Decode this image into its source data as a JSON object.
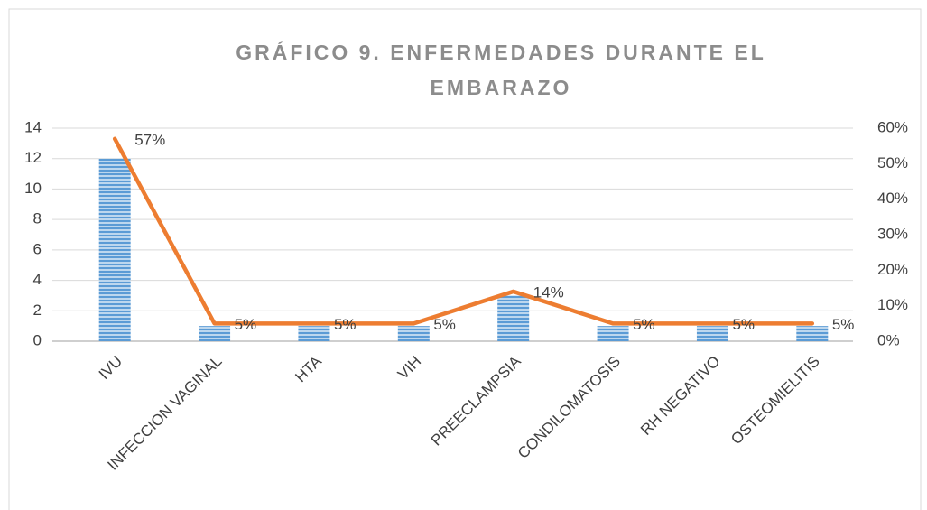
{
  "chart_data": {
    "type": "bar",
    "title": [
      "GRÁFICO 9. ENFERMEDADES DURANTE EL",
      "EMBARAZO"
    ],
    "categories": [
      "IVU",
      "INFECCION VAGINAL",
      "HTA",
      "VIH",
      "PREECLAMPSIA",
      "CONDILOMATOSIS",
      "RH NEGATIVO",
      "OSTEOMIELITIS"
    ],
    "series": [
      {
        "type": "bar",
        "color": "#5b9bd5",
        "values": [
          12,
          1,
          1,
          1,
          3,
          1,
          1,
          1
        ]
      },
      {
        "type": "line",
        "color": "#ed7d31",
        "axis": "y2",
        "values": [
          57,
          5,
          5,
          5,
          14,
          5,
          5,
          5
        ],
        "value_labels": [
          "57%",
          "5%",
          "5%",
          "5%",
          "14%",
          "5%",
          "5%",
          "5%"
        ]
      }
    ],
    "ylim": [
      0,
      14
    ],
    "yticks": [
      0,
      2,
      4,
      6,
      8,
      10,
      12,
      14
    ],
    "y2lim": [
      0,
      60
    ],
    "y2ticks": [
      {
        "value": 0,
        "label": "0%"
      },
      {
        "value": 10,
        "label": "10%"
      },
      {
        "value": 20,
        "label": "20%"
      },
      {
        "value": 30,
        "label": "30%"
      },
      {
        "value": 40,
        "label": "40%"
      },
      {
        "value": 50,
        "label": "50%"
      },
      {
        "value": 60,
        "label": "60%"
      }
    ],
    "grid": true
  }
}
